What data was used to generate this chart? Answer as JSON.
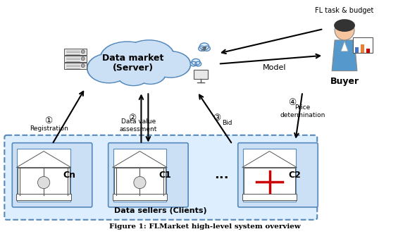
{
  "bg_color": "#ffffff",
  "fig_width": 5.82,
  "fig_height": 3.32,
  "title": "Figure 1: FLMarket high-level system overview",
  "cloud_color": "#cce0f5",
  "cloud_outline": "#5588bb",
  "cloud_text_line1": "Data market",
  "cloud_text_line2": "(Server)",
  "sellers_box_color": "#ddeeff",
  "sellers_box_outline": "#5588bb",
  "sellers_text": "Data sellers (Clients)",
  "client_box_color": "#cce0f5",
  "client_box_outline": "#5588bb",
  "buyer_text": "Buyer",
  "fl_task_text": "FL task & budget",
  "model_text": "Model",
  "arrow_color": "#000000",
  "label1_circ": "①",
  "label1_text": "Registration",
  "label2_circ": "②",
  "label2_text": "Data value\nassessment",
  "label3_circ": "③",
  "label3_text": "Bid",
  "label4_circ": "④",
  "label4_text": "Price\ndetermination",
  "cn_text": "Cn",
  "c1_text": "C1",
  "c2_text": "C2",
  "dots": "...",
  "font_size_title": 7.5,
  "font_size_labels": 6.5,
  "font_size_cloud_title": 9,
  "font_size_sellers": 8,
  "font_size_buyer": 9,
  "font_size_clients": 9,
  "font_size_circle": 8
}
